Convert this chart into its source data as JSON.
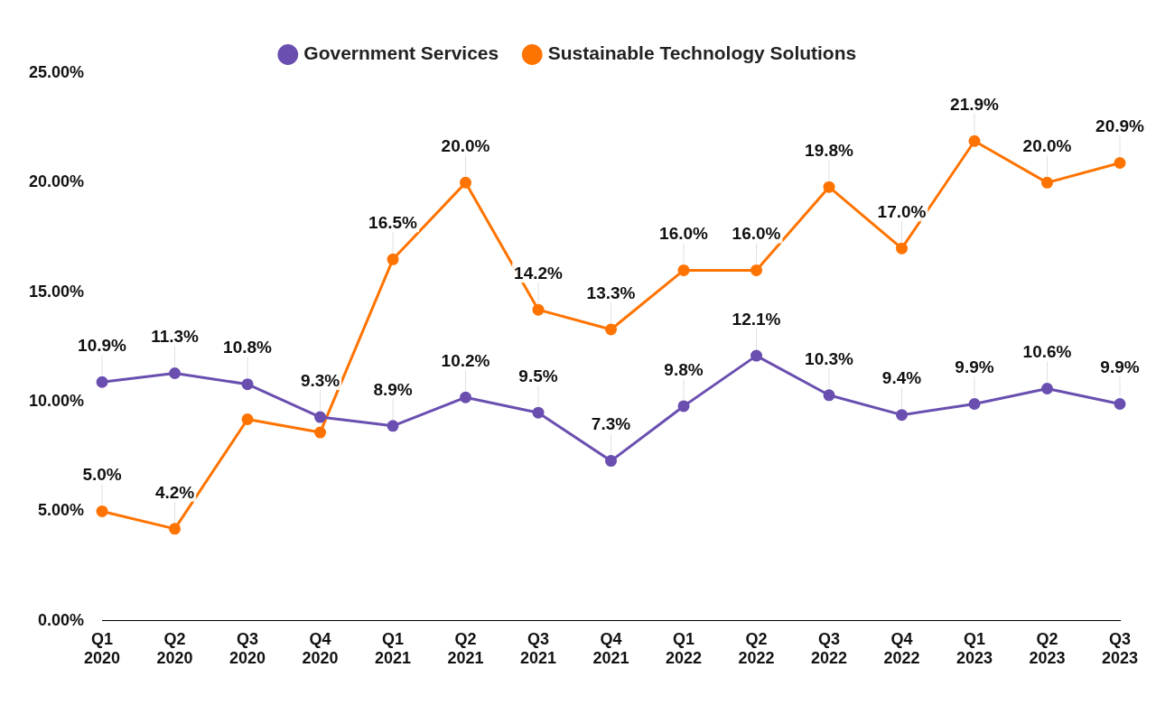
{
  "chart_data": {
    "type": "line",
    "categories": [
      "Q1 2020",
      "Q2 2020",
      "Q3 2020",
      "Q4 2020",
      "Q1 2021",
      "Q2 2021",
      "Q3 2021",
      "Q4 2021",
      "Q1 2022",
      "Q2 2022",
      "Q3 2022",
      "Q4 2022",
      "Q1 2023",
      "Q2 2023",
      "Q3 2023"
    ],
    "series": [
      {
        "name": "Government Services",
        "color": "#6a4fb0",
        "values": [
          10.9,
          11.3,
          10.8,
          9.3,
          8.9,
          10.2,
          9.5,
          7.3,
          9.8,
          12.1,
          10.3,
          9.4,
          9.9,
          10.6,
          9.9
        ],
        "value_labels": [
          "10.9%",
          "11.3%",
          "10.8%",
          "9.3%",
          "8.9%",
          "10.2%",
          "9.5%",
          "7.3%",
          "9.8%",
          "12.1%",
          "10.3%",
          "9.4%",
          "9.9%",
          "10.6%",
          "9.9%"
        ]
      },
      {
        "name": "Sustainable Technology Solutions",
        "color": "#ff7300",
        "values": [
          5.0,
          4.2,
          9.2,
          8.6,
          16.5,
          20.0,
          14.2,
          13.3,
          16.0,
          16.0,
          19.8,
          17.0,
          21.9,
          20.0,
          20.9
        ],
        "value_labels": [
          "5.0%",
          "4.2%",
          null,
          null,
          "16.5%",
          "20.0%",
          "14.2%",
          "13.3%",
          "16.0%",
          "16.0%",
          "19.8%",
          "17.0%",
          "21.9%",
          "20.0%",
          "20.9%"
        ]
      }
    ],
    "ylim": [
      0,
      25
    ],
    "yticks": [
      {
        "value": 0,
        "label": "0.00%"
      },
      {
        "value": 5,
        "label": "5.00%"
      },
      {
        "value": 10,
        "label": "10.00%"
      },
      {
        "value": 15,
        "label": "15.00%"
      },
      {
        "value": 20,
        "label": "20.00%"
      },
      {
        "value": 25,
        "label": "25.00%"
      }
    ],
    "grid": false,
    "legend": "top",
    "marker": "circle",
    "line_style": "solid"
  }
}
